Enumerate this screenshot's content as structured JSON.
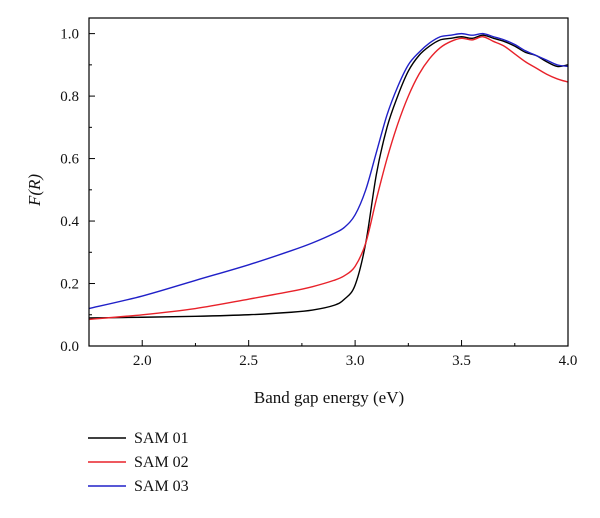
{
  "chart_data": {
    "type": "line",
    "xlabel": "Band gap energy (eV)",
    "ylabel": "F(R)",
    "xlim": [
      1.75,
      4.0
    ],
    "ylim": [
      0.0,
      1.05
    ],
    "x_ticks": [
      2.0,
      2.5,
      3.0,
      3.5,
      4.0
    ],
    "x_tick_labels": [
      "2.0",
      "2.5",
      "3.0",
      "3.5",
      "4.0"
    ],
    "y_ticks": [
      0.0,
      0.2,
      0.4,
      0.6,
      0.8,
      1.0
    ],
    "y_tick_labels": [
      "0.0",
      "0.2",
      "0.4",
      "0.6",
      "0.8",
      "1.0"
    ],
    "grid": false,
    "legend_position": "bottom-left, below plot",
    "series": [
      {
        "name": "SAM 01",
        "color": "#000000",
        "x": [
          1.75,
          2.0,
          2.25,
          2.5,
          2.7,
          2.8,
          2.9,
          2.95,
          3.0,
          3.05,
          3.1,
          3.15,
          3.2,
          3.25,
          3.3,
          3.35,
          3.4,
          3.45,
          3.5,
          3.55,
          3.6,
          3.65,
          3.7,
          3.75,
          3.8,
          3.85,
          3.9,
          3.95,
          4.0
        ],
        "y": [
          0.09,
          0.092,
          0.095,
          0.1,
          0.108,
          0.115,
          0.13,
          0.15,
          0.195,
          0.33,
          0.55,
          0.7,
          0.8,
          0.88,
          0.93,
          0.96,
          0.98,
          0.985,
          0.99,
          0.985,
          0.995,
          0.985,
          0.975,
          0.96,
          0.94,
          0.93,
          0.91,
          0.895,
          0.9
        ]
      },
      {
        "name": "SAM 02",
        "color": "#e8222a",
        "x": [
          1.75,
          2.0,
          2.25,
          2.5,
          2.7,
          2.8,
          2.9,
          2.95,
          3.0,
          3.05,
          3.1,
          3.15,
          3.2,
          3.25,
          3.3,
          3.35,
          3.4,
          3.45,
          3.5,
          3.55,
          3.6,
          3.65,
          3.7,
          3.75,
          3.8,
          3.85,
          3.9,
          3.95,
          4.0
        ],
        "y": [
          0.085,
          0.1,
          0.12,
          0.15,
          0.175,
          0.19,
          0.21,
          0.225,
          0.255,
          0.33,
          0.47,
          0.6,
          0.71,
          0.8,
          0.87,
          0.92,
          0.955,
          0.975,
          0.985,
          0.98,
          0.99,
          0.975,
          0.96,
          0.935,
          0.91,
          0.89,
          0.87,
          0.855,
          0.845
        ]
      },
      {
        "name": "SAM 03",
        "color": "#2020c8",
        "x": [
          1.75,
          2.0,
          2.25,
          2.5,
          2.7,
          2.8,
          2.9,
          2.95,
          3.0,
          3.05,
          3.1,
          3.15,
          3.2,
          3.25,
          3.3,
          3.35,
          3.4,
          3.45,
          3.5,
          3.55,
          3.6,
          3.65,
          3.7,
          3.75,
          3.8,
          3.85,
          3.9,
          3.95,
          4.0
        ],
        "y": [
          0.12,
          0.16,
          0.21,
          0.26,
          0.305,
          0.33,
          0.36,
          0.38,
          0.42,
          0.5,
          0.62,
          0.74,
          0.83,
          0.9,
          0.94,
          0.97,
          0.99,
          0.995,
          1.0,
          0.995,
          1.0,
          0.99,
          0.98,
          0.965,
          0.945,
          0.93,
          0.915,
          0.9,
          0.895
        ]
      }
    ]
  }
}
